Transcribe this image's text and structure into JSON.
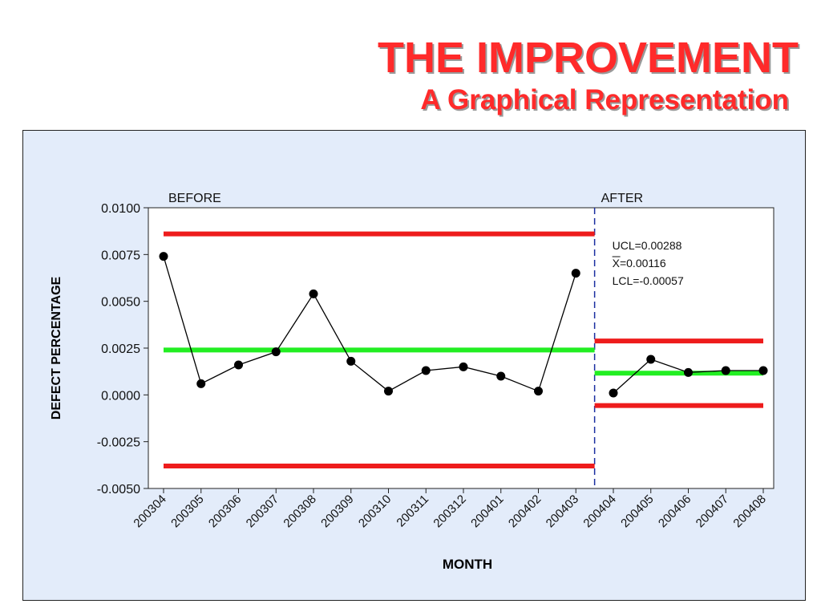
{
  "slide": {
    "title": "THE IMPROVEMENT",
    "subtitle": "A Graphical Representation"
  },
  "colors": {
    "control_limit": "#ee1c1c",
    "center_line": "#22ee22",
    "data": "#000000",
    "divider": "#1a2ea0",
    "panel_bg": "#e3ecfa",
    "title": "#ff2a2a"
  },
  "chart_data": {
    "type": "line",
    "subtype": "control-chart",
    "xlabel": "MONTH",
    "ylabel": "DEFECT PERCENTAGE",
    "ylim": [
      -0.005,
      0.01
    ],
    "yticks": [
      "-0.0050",
      "-0.0025",
      "0.0000",
      "0.0025",
      "0.0050",
      "0.0075",
      "0.0100"
    ],
    "ytick_values": [
      -0.005,
      -0.0025,
      0.0,
      0.0025,
      0.005,
      0.0075,
      0.01
    ],
    "categories": [
      "200304",
      "200305",
      "200306",
      "200307",
      "200308",
      "200309",
      "200310",
      "200311",
      "200312",
      "200401",
      "200402",
      "200403",
      "200404",
      "200405",
      "200406",
      "200407",
      "200408"
    ],
    "values": [
      0.0074,
      0.0006,
      0.0016,
      0.0023,
      0.0054,
      0.0018,
      0.0002,
      0.0013,
      0.0015,
      0.001,
      0.0002,
      0.0065,
      0.0001,
      0.0019,
      0.0012,
      0.0013,
      0.0013
    ],
    "stages": [
      {
        "label": "BEFORE",
        "start": 0,
        "end": 11,
        "ucl": 0.0086,
        "center": 0.0024,
        "lcl": -0.0038
      },
      {
        "label": "AFTER",
        "start": 12,
        "end": 16,
        "ucl": 0.00288,
        "center": 0.00116,
        "lcl": -0.00057
      }
    ],
    "annotations": [
      "UCL=0.00288",
      "X=0.00116",
      "LCL=-0.00057"
    ],
    "grid": false
  }
}
